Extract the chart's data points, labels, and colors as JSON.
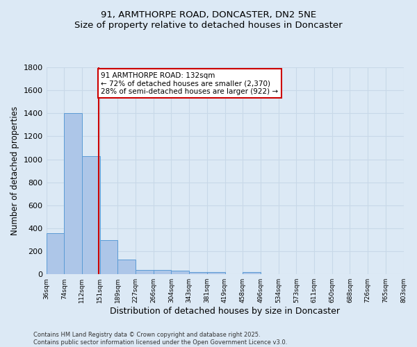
{
  "title_line1": "91, ARMTHORPE ROAD, DONCASTER, DN2 5NE",
  "title_line2": "Size of property relative to detached houses in Doncaster",
  "xlabel": "Distribution of detached houses by size in Doncaster",
  "ylabel": "Number of detached properties",
  "bin_labels": [
    "36sqm",
    "74sqm",
    "112sqm",
    "151sqm",
    "189sqm",
    "227sqm",
    "266sqm",
    "304sqm",
    "343sqm",
    "381sqm",
    "419sqm",
    "458sqm",
    "496sqm",
    "534sqm",
    "573sqm",
    "611sqm",
    "650sqm",
    "688sqm",
    "726sqm",
    "765sqm",
    "803sqm"
  ],
  "bar_heights": [
    360,
    1400,
    1030,
    295,
    130,
    40,
    35,
    30,
    20,
    20,
    0,
    20,
    0,
    0,
    0,
    0,
    0,
    0,
    0,
    0
  ],
  "bar_color": "#adc6e8",
  "bar_edge_color": "#5b9bd5",
  "grid_color": "#c8d8e8",
  "background_color": "#dce9f5",
  "red_line_x": 2.42,
  "annotation_text": "91 ARMTHORPE ROAD: 132sqm\n← 72% of detached houses are smaller (2,370)\n28% of semi-detached houses are larger (922) →",
  "annotation_box_color": "#ffffff",
  "annotation_box_edge": "#cc0000",
  "footer_line1": "Contains HM Land Registry data © Crown copyright and database right 2025.",
  "footer_line2": "Contains public sector information licensed under the Open Government Licence v3.0.",
  "ylim": [
    0,
    1800
  ],
  "yticks": [
    0,
    200,
    400,
    600,
    800,
    1000,
    1200,
    1400,
    1600,
    1800
  ]
}
